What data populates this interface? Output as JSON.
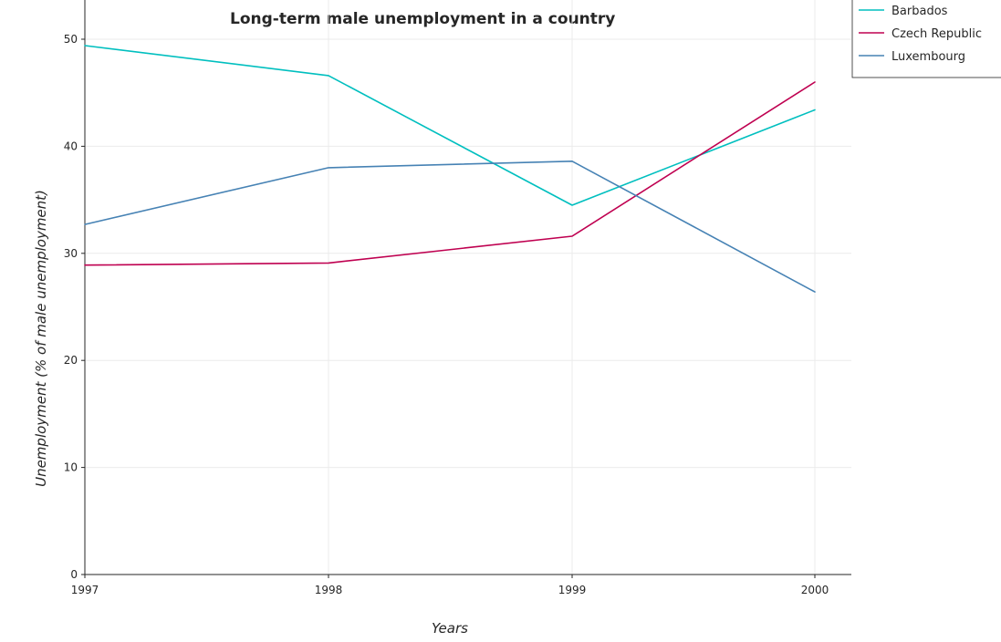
{
  "chart_data": {
    "type": "line",
    "title": "Long-term male unemployment in a country",
    "xlabel": "Years",
    "ylabel": "Unemployment (% of male unemployment)",
    "categories": [
      "1997",
      "1998",
      "1999",
      "2000"
    ],
    "ylim": [
      0,
      50
    ],
    "yticks": [
      0,
      10,
      20,
      30,
      40,
      50
    ],
    "ytick_labels": [
      "0",
      "10",
      "20",
      "30",
      "40",
      "50"
    ],
    "grid": true,
    "legend_position": "top-right",
    "series": [
      {
        "name": "Barbados",
        "color": "#00bfbf",
        "values": [
          49.4,
          46.6,
          34.5,
          43.4
        ]
      },
      {
        "name": "Czech Republic",
        "color": "#bf0050",
        "values": [
          28.9,
          29.1,
          31.6,
          46.0
        ]
      },
      {
        "name": "Luxembourg",
        "color": "#4682b4",
        "values": [
          32.7,
          38.0,
          38.6,
          26.4
        ]
      }
    ]
  }
}
